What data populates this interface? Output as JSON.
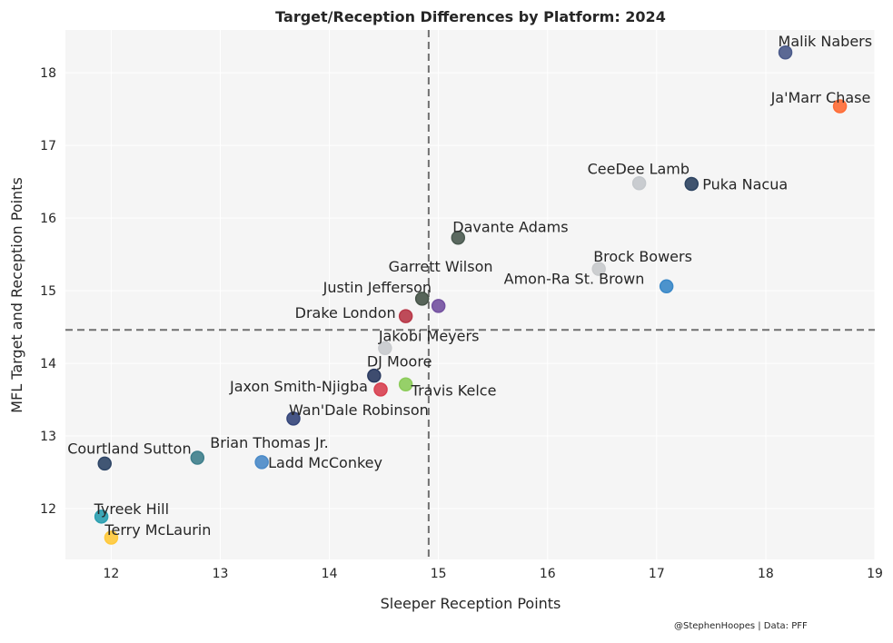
{
  "chart_data": {
    "type": "scatter",
    "title": "Target/Reception Differences by Platform: 2024",
    "xlabel": "Sleeper Reception Points",
    "ylabel": "MFL Target and Reception Points",
    "xlim": [
      11.58,
      19
    ],
    "ylim": [
      11.3,
      18.59
    ],
    "xticks": [
      12,
      13,
      14,
      15,
      16,
      17,
      18,
      19
    ],
    "yticks": [
      12,
      13,
      14,
      15,
      16,
      17,
      18
    ],
    "grid": true,
    "reference_lines": {
      "vertical_x": 14.91,
      "horizontal_y": 14.46,
      "style": "dashed"
    },
    "footnote": "@StephenHoopes | Data: PFF",
    "points": [
      {
        "label": "Malik Nabers",
        "x": 18.18,
        "y": 18.28,
        "color": "#4a5a8a"
      },
      {
        "label": "Ja'Marr Chase",
        "x": 18.68,
        "y": 17.54,
        "color": "#ff6b35"
      },
      {
        "label": "CeeDee Lamb",
        "x": 16.84,
        "y": 16.48,
        "color": "#c4c8cc"
      },
      {
        "label": "Puka Nacua",
        "x": 17.32,
        "y": 16.47,
        "color": "#2c4360"
      },
      {
        "label": "Davante Adams",
        "x": 15.18,
        "y": 15.73,
        "color": "#4a5a50"
      },
      {
        "label": "Brock Bowers",
        "x": 16.47,
        "y": 15.3,
        "color": "#c8cacc"
      },
      {
        "label": "Amon-Ra St. Brown",
        "x": 17.09,
        "y": 15.06,
        "color": "#3a88c8"
      },
      {
        "label": "Garrett Wilson",
        "x": 15.0,
        "y": 14.79,
        "color": "#7350a0"
      },
      {
        "label": "Justin Jefferson",
        "x": 14.85,
        "y": 14.89,
        "color": "#465448"
      },
      {
        "label": "Drake London",
        "x": 14.7,
        "y": 14.65,
        "color": "#b83848"
      },
      {
        "label": "Jakobi Meyers",
        "x": 14.51,
        "y": 14.21,
        "color": "#c8cacd"
      },
      {
        "label": "DJ Moore",
        "x": 14.41,
        "y": 13.83,
        "color": "#2a3a60"
      },
      {
        "label": "Travis Kelce",
        "x": 14.7,
        "y": 13.71,
        "color": "#8ccc5a"
      },
      {
        "label": "Jaxon Smith-Njigba",
        "x": 14.47,
        "y": 13.64,
        "color": "#d84050"
      },
      {
        "label": "Wan'Dale Robinson",
        "x": 13.67,
        "y": 13.24,
        "color": "#34457a"
      },
      {
        "label": "Brian Thomas Jr.",
        "x": 12.79,
        "y": 12.7,
        "color": "#3f7f8c"
      },
      {
        "label": "Ladd McConkey",
        "x": 13.38,
        "y": 12.64,
        "color": "#4a8ac8"
      },
      {
        "label": "Courtland Sutton",
        "x": 11.94,
        "y": 12.62,
        "color": "#2e4566"
      },
      {
        "label": "Tyreek Hill",
        "x": 11.91,
        "y": 11.89,
        "color": "#2a9fb0"
      },
      {
        "label": "Terry McLaurin",
        "x": 12.0,
        "y": 11.6,
        "color": "#ffc93a"
      }
    ]
  }
}
